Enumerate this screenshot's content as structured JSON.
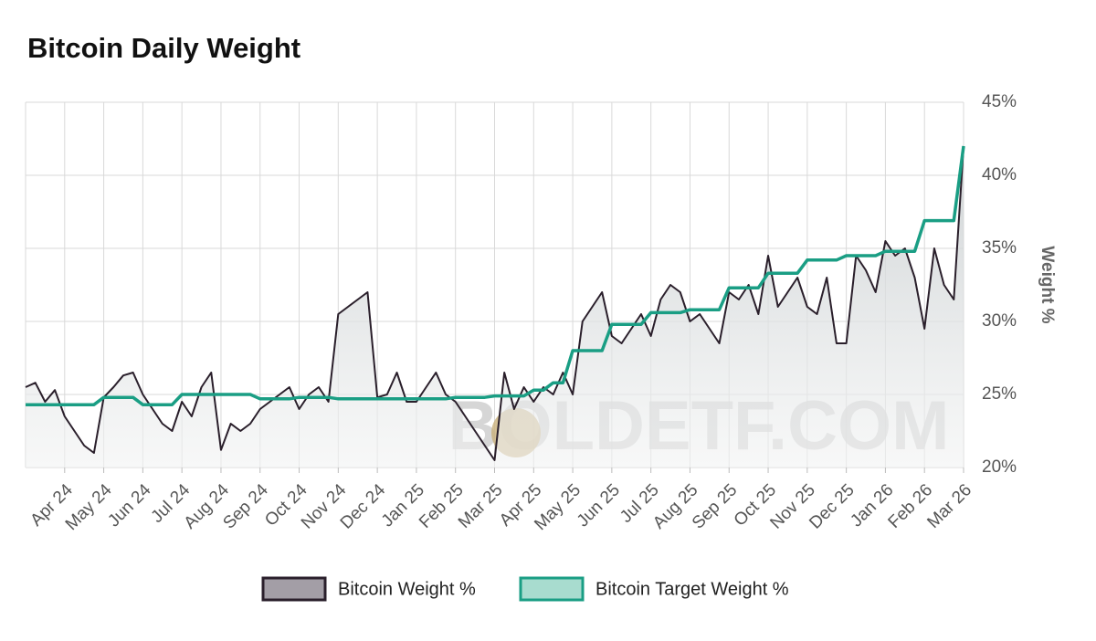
{
  "chart_data": {
    "type": "line",
    "title": "Bitcoin Daily Weight",
    "y_label": "Weight %",
    "watermark": "BOLDETF.COM",
    "categories": [
      null,
      null,
      null,
      null,
      "Apr 24",
      null,
      null,
      null,
      "May 24",
      null,
      null,
      null,
      "Jun 24",
      null,
      null,
      null,
      "Jul 24",
      null,
      null,
      null,
      "Aug 24",
      null,
      null,
      null,
      "Sep 24",
      null,
      null,
      null,
      "Oct 24",
      null,
      null,
      null,
      "Nov 24",
      null,
      null,
      null,
      "Dec 24",
      null,
      null,
      null,
      "Jan 25",
      null,
      null,
      null,
      "Feb 25",
      null,
      null,
      null,
      "Mar 25",
      null,
      null,
      null,
      "Apr 25",
      null,
      null,
      null,
      "May 25",
      null,
      null,
      null,
      "Jun 25",
      null,
      null,
      null,
      "Jul 25",
      null,
      null,
      null,
      "Aug 25",
      null,
      null,
      null,
      "Sep 25",
      null,
      null,
      null,
      "Oct 25",
      null,
      null,
      null,
      "Nov 25",
      null,
      null,
      null,
      "Dec 25",
      null,
      null,
      null,
      "Jan 26",
      null,
      null,
      null,
      "Feb 26",
      null,
      null,
      null,
      "Mar 26"
    ],
    "series": [
      {
        "name": "Bitcoin Weight %",
        "color": "#2a1f2b",
        "fill": "#a39ea6",
        "values": [
          25.5,
          25.8,
          24.5,
          25.3,
          23.5,
          22.5,
          21.5,
          21.0,
          24.8,
          25.5,
          26.3,
          26.5,
          25.0,
          24.0,
          23.0,
          22.5,
          24.5,
          23.5,
          25.5,
          26.5,
          21.2,
          23.0,
          22.5,
          23.0,
          24.0,
          24.5,
          25.0,
          25.5,
          24.0,
          25.0,
          25.5,
          24.5,
          30.5,
          31.0,
          31.5,
          32.0,
          24.8,
          25.0,
          26.5,
          24.5,
          24.5,
          25.5,
          26.5,
          25.0,
          24.5,
          23.5,
          22.5,
          21.5,
          20.5,
          26.5,
          24.0,
          25.5,
          24.5,
          25.5,
          25.0,
          26.5,
          25.0,
          30.0,
          31.0,
          32.0,
          29.0,
          28.5,
          29.5,
          30.5,
          29.0,
          31.5,
          32.5,
          32.0,
          30.0,
          30.5,
          29.5,
          28.5,
          32.0,
          31.5,
          32.5,
          30.5,
          34.5,
          31.0,
          32.0,
          33.0,
          31.0,
          30.5,
          33.0,
          28.5,
          28.5,
          34.5,
          33.5,
          32.0,
          35.5,
          34.5,
          35.0,
          33.0,
          29.5,
          35.0,
          32.5,
          31.5,
          42.0
        ]
      },
      {
        "name": "Bitcoin Target Weight %",
        "color": "#1a9e84",
        "fill": "#a8dccf",
        "values": [
          24.3,
          24.3,
          24.3,
          24.3,
          24.3,
          24.3,
          24.3,
          24.3,
          24.8,
          24.8,
          24.8,
          24.8,
          24.3,
          24.3,
          24.3,
          24.3,
          25.0,
          25.0,
          25.0,
          25.0,
          25.0,
          25.0,
          25.0,
          25.0,
          24.7,
          24.7,
          24.7,
          24.7,
          24.8,
          24.8,
          24.8,
          24.8,
          24.7,
          24.7,
          24.7,
          24.7,
          24.7,
          24.7,
          24.7,
          24.7,
          24.7,
          24.7,
          24.7,
          24.7,
          24.8,
          24.8,
          24.8,
          24.8,
          24.9,
          24.9,
          24.9,
          24.9,
          25.3,
          25.3,
          25.8,
          25.8,
          28.0,
          28.0,
          28.0,
          28.0,
          29.8,
          29.8,
          29.8,
          29.8,
          30.6,
          30.6,
          30.6,
          30.6,
          30.8,
          30.8,
          30.8,
          30.8,
          32.3,
          32.3,
          32.3,
          32.3,
          33.3,
          33.3,
          33.3,
          33.3,
          34.2,
          34.2,
          34.2,
          34.2,
          34.5,
          34.5,
          34.5,
          34.5,
          34.8,
          34.8,
          34.8,
          34.8,
          36.9,
          36.9,
          36.9,
          36.9,
          42.0
        ]
      }
    ],
    "ylim": [
      20,
      45
    ],
    "yticks": [
      {
        "value": 20,
        "label": "20%"
      },
      {
        "value": 25,
        "label": "25%"
      },
      {
        "value": 30,
        "label": "30%"
      },
      {
        "value": 35,
        "label": "35%"
      },
      {
        "value": 40,
        "label": "40%"
      },
      {
        "value": 45,
        "label": "45%"
      }
    ],
    "grid": true,
    "legend": "bottom"
  }
}
